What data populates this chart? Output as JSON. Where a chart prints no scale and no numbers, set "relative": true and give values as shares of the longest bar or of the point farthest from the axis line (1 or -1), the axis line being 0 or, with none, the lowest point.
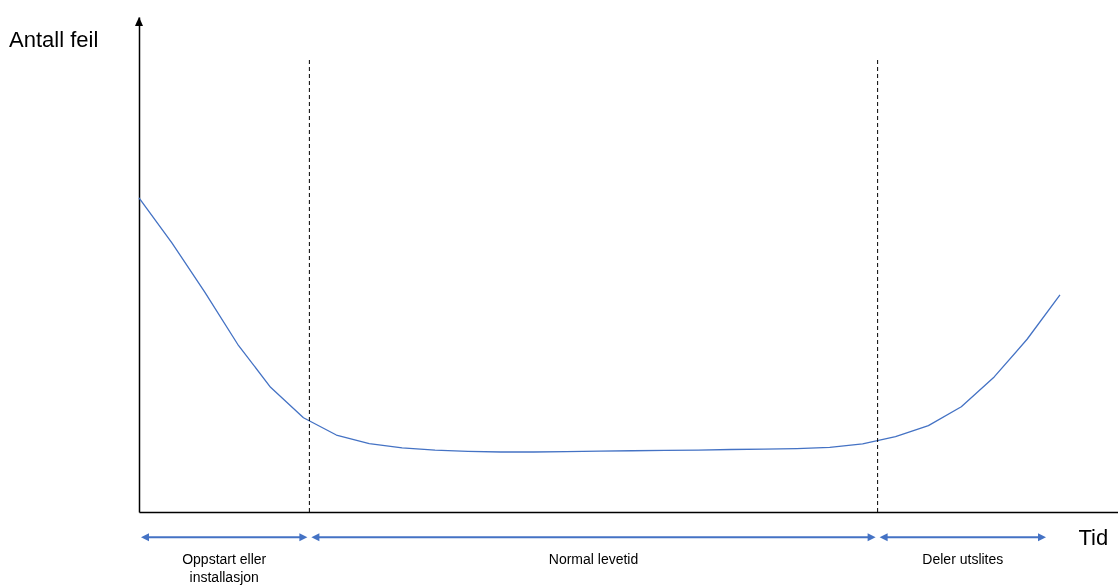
{
  "chart_data": {
    "type": "line",
    "relative": true,
    "xlabel": "Tid",
    "tick_labels": false,
    "categories": [
      null,
      null,
      null,
      null,
      null,
      null,
      null,
      null,
      null,
      null,
      null,
      null,
      null,
      null,
      null,
      null,
      null,
      null,
      null,
      null,
      null,
      null,
      null,
      null,
      null,
      null,
      null,
      null,
      null
    ],
    "series": [
      {
        "color": "#4472c4",
        "values": [
          1,
          0.857,
          0.7,
          0.534,
          0.397,
          0.3,
          0.245,
          0.218,
          0.204,
          0.197,
          0.193,
          0.191,
          0.191,
          0.192,
          0.194,
          0.195,
          0.196,
          0.197,
          0.199,
          0.2,
          0.202,
          0.206,
          0.217,
          0.24,
          0.275,
          0.335,
          0.43,
          0.55,
          0.691
        ]
      }
    ],
    "annotations": [
      "Antall feil",
      "Oppstart eller installasjon",
      "Normal levetid",
      "Deler utslites"
    ]
  }
}
